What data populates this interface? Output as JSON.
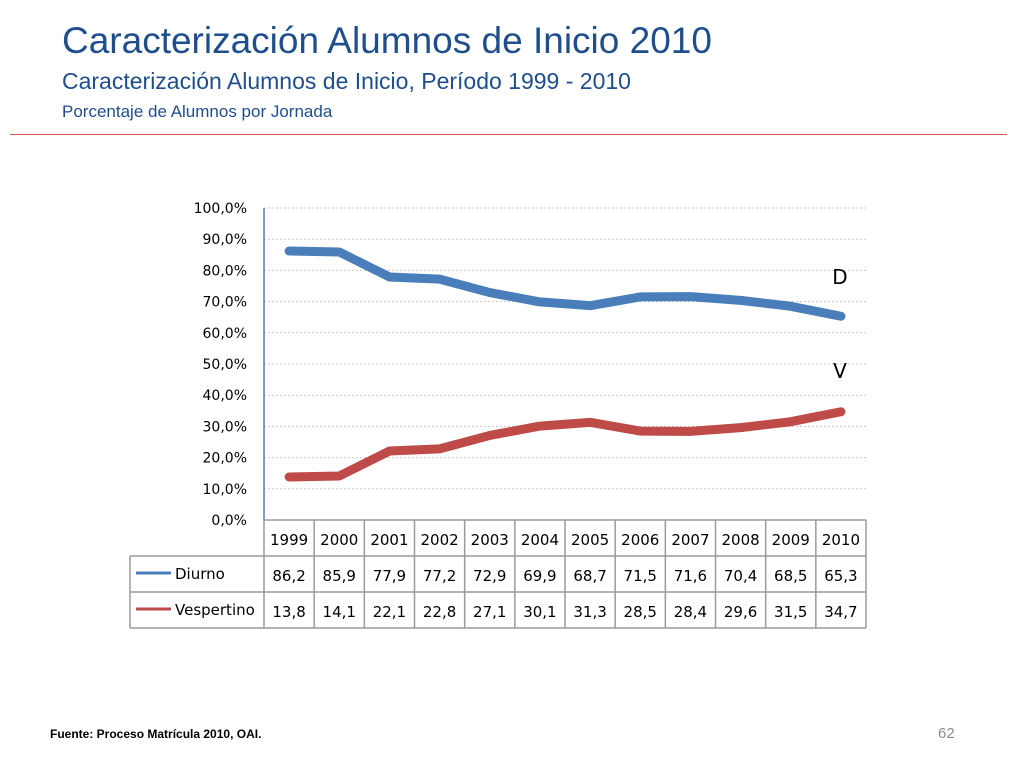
{
  "slide": {
    "title": "Caracterización Alumnos de Inicio 2010",
    "subtitle": "Caracterización Alumnos de Inicio, Período 1999 - 2010",
    "subtitle2": "Porcentaje de Alumnos por Jornada",
    "source": "Fuente: Proceso Matrícula 2010, OAI.",
    "page_number": "62"
  },
  "colors": {
    "title": "#1f4e8c",
    "divider": "#d9534f"
  },
  "chart_data": {
    "type": "line",
    "categories": [
      "1999",
      "2000",
      "2001",
      "2002",
      "2003",
      "2004",
      "2005",
      "2006",
      "2007",
      "2008",
      "2009",
      "2010"
    ],
    "series": [
      {
        "name": "Diurno",
        "values": [
          86.2,
          85.9,
          77.9,
          77.2,
          72.9,
          69.9,
          68.7,
          71.5,
          71.6,
          70.4,
          68.5,
          65.3
        ],
        "value_labels": [
          "86,2",
          "85,9",
          "77,9",
          "77,2",
          "72,9",
          "69,9",
          "68,7",
          "71,5",
          "71,6",
          "70,4",
          "68,5",
          "65,3"
        ],
        "end_label": "D",
        "color": "#4a7ebb"
      },
      {
        "name": "Vespertino",
        "values": [
          13.8,
          14.1,
          22.1,
          22.8,
          27.1,
          30.1,
          31.3,
          28.5,
          28.4,
          29.6,
          31.5,
          34.7
        ],
        "value_labels": [
          "13,8",
          "14,1",
          "22,1",
          "22,8",
          "27,1",
          "30,1",
          "31,3",
          "28,5",
          "28,4",
          "29,6",
          "31,5",
          "34,7"
        ],
        "end_label": "V",
        "color": "#be4b48"
      }
    ],
    "ylim": [
      0,
      100
    ],
    "y_ticks": [
      "0,0%",
      "10,0%",
      "20,0%",
      "30,0%",
      "40,0%",
      "50,0%",
      "60,0%",
      "70,0%",
      "80,0%",
      "90,0%",
      "100,0%"
    ],
    "grid": true,
    "data_table": true
  }
}
